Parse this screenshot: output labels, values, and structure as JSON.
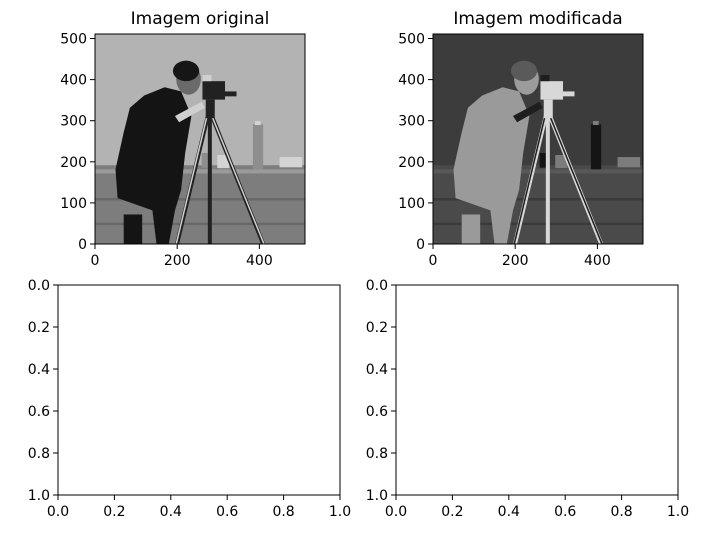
{
  "chart_data": [
    {
      "type": "image",
      "title": "Imagem original",
      "image": "cameraman-grayscale",
      "x_ticks": [
        0,
        200,
        400
      ],
      "y_ticks": [
        0,
        100,
        200,
        300,
        400,
        500
      ],
      "xlim": [
        0,
        511
      ],
      "ylim": [
        511,
        0
      ]
    },
    {
      "type": "image",
      "title": "Imagem modificada",
      "image": "cameraman-modified-low-contrast",
      "x_ticks": [
        0,
        200,
        400
      ],
      "y_ticks": [
        0,
        100,
        200,
        300,
        400,
        500
      ],
      "xlim": [
        0,
        511
      ],
      "ylim": [
        511,
        0
      ]
    },
    {
      "type": "empty",
      "title": "",
      "x_ticks": [
        0.0,
        0.2,
        0.4,
        0.6,
        0.8,
        1.0
      ],
      "y_ticks": [
        0.0,
        0.2,
        0.4,
        0.6,
        0.8,
        1.0
      ],
      "xlim": [
        0,
        1
      ],
      "ylim": [
        0,
        1
      ]
    },
    {
      "type": "empty",
      "title": "",
      "x_ticks": [
        0.0,
        0.2,
        0.4,
        0.6,
        0.8,
        1.0
      ],
      "y_ticks": [
        0.0,
        0.2,
        0.4,
        0.6,
        0.8,
        1.0
      ],
      "xlim": [
        0,
        1
      ],
      "ylim": [
        0,
        1
      ]
    }
  ]
}
